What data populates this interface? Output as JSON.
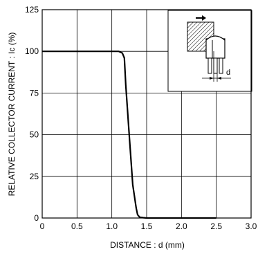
{
  "chart_data": {
    "type": "line",
    "title": "",
    "xlabel": "DISTANCE : d (mm)",
    "ylabel": "RELATIVE  COLLECTOR  CURRENT : Ic (%)",
    "xlim": [
      0,
      3.0
    ],
    "ylim": [
      0,
      125
    ],
    "xticks": [
      "0",
      "0.5",
      "1.0",
      "1.5",
      "2.0",
      "2.5",
      "3.0"
    ],
    "yticks": [
      "0",
      "25",
      "50",
      "75",
      "100",
      "125"
    ],
    "grid": true,
    "inset_label": "d",
    "series": [
      {
        "x": [
          0,
          0.5,
          1.0,
          1.1,
          1.15,
          1.18,
          1.2,
          1.25,
          1.3,
          1.35,
          1.37,
          1.4,
          1.45,
          1.5,
          2.0,
          2.5
        ],
        "y": [
          100,
          100,
          100,
          100,
          99,
          96,
          80,
          50,
          20,
          6,
          2,
          0.5,
          0.2,
          0,
          0,
          0
        ]
      }
    ]
  }
}
